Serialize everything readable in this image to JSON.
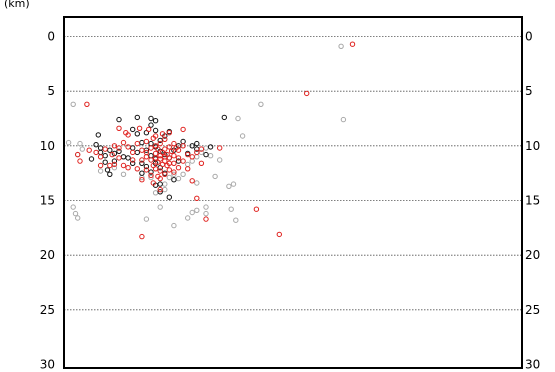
{
  "chart_data": {
    "type": "scatter",
    "title": "",
    "xlabel": "",
    "ylabel": "(km)",
    "ylim": [
      0,
      30
    ],
    "y_inverted": true,
    "xlim": [
      0,
      100
    ],
    "yticks": [
      0,
      5,
      10,
      15,
      20,
      25,
      30
    ],
    "ytick_labels": [
      "0",
      "5",
      "10",
      "15",
      "20",
      "25",
      "30"
    ],
    "ticks_both_sides": true,
    "grid": "horizontal dotted",
    "marker": "open circle",
    "colors": {
      "black": "#111111",
      "gray": "#a8a8a8",
      "red": "#e0221f",
      "frame": "#000000",
      "grid": "#555555"
    },
    "series": [
      {
        "color_key": "gray",
        "points": [
          [
            1,
            9.7
          ],
          [
            2,
            6.2
          ],
          [
            2,
            15.6
          ],
          [
            2.5,
            16.2
          ],
          [
            3,
            16.6
          ],
          [
            3.5,
            9.8
          ],
          [
            3,
            10.8
          ],
          [
            4,
            10.3
          ],
          [
            8,
            12.3
          ],
          [
            11,
            12.0
          ],
          [
            13,
            12.6
          ],
          [
            17,
            12.9
          ],
          [
            19,
            12.9
          ],
          [
            20,
            14.3
          ],
          [
            22,
            14.0
          ],
          [
            18,
            16.7
          ],
          [
            21,
            15.6
          ],
          [
            22,
            13.5
          ],
          [
            23,
            12.9
          ],
          [
            24,
            12.6
          ],
          [
            25,
            13.0
          ],
          [
            26,
            12.6
          ],
          [
            27,
            11.7
          ],
          [
            28,
            11.4
          ],
          [
            29,
            11.0
          ],
          [
            29,
            13.4
          ],
          [
            30,
            10.6
          ],
          [
            31,
            10.2
          ],
          [
            33,
            12.8
          ],
          [
            24,
            17.3
          ],
          [
            27,
            16.6
          ],
          [
            28,
            16.1
          ],
          [
            34,
            11.3
          ],
          [
            29,
            15.9
          ],
          [
            31,
            15.6
          ],
          [
            31,
            16.2
          ],
          [
            32,
            10.9
          ],
          [
            36,
            13.7
          ],
          [
            36.5,
            15.8
          ],
          [
            37,
            13.5
          ],
          [
            37.5,
            16.8
          ],
          [
            38,
            7.5
          ],
          [
            39,
            9.1
          ],
          [
            43,
            6.2
          ],
          [
            60.5,
            0.9
          ],
          [
            61,
            7.6
          ]
        ]
      },
      {
        "color_key": "black",
        "points": [
          [
            6,
            11.2
          ],
          [
            7,
            9.9
          ],
          [
            7.5,
            9.0
          ],
          [
            8,
            10.6
          ],
          [
            8,
            10.2
          ],
          [
            9,
            10.9
          ],
          [
            9,
            11.5
          ],
          [
            9.5,
            12.2
          ],
          [
            10,
            10.4
          ],
          [
            10,
            12.6
          ],
          [
            11,
            10.7
          ],
          [
            11,
            11.4
          ],
          [
            12,
            10.5
          ],
          [
            12,
            7.6
          ],
          [
            13,
            11.0
          ],
          [
            14,
            11.1
          ],
          [
            15,
            8.5
          ],
          [
            15,
            10.2
          ],
          [
            15,
            11.6
          ],
          [
            16,
            7.4
          ],
          [
            16,
            8.9
          ],
          [
            16,
            10.6
          ],
          [
            17,
            9.7
          ],
          [
            17,
            11.6
          ],
          [
            17,
            12.5
          ],
          [
            18,
            10.4
          ],
          [
            18,
            11.9
          ],
          [
            18,
            8.8
          ],
          [
            19,
            7.5
          ],
          [
            19,
            8.1
          ],
          [
            19,
            9.8
          ],
          [
            19,
            10.9
          ],
          [
            19,
            12.4
          ],
          [
            20,
            7.7
          ],
          [
            20,
            8.6
          ],
          [
            20,
            10.1
          ],
          [
            20,
            13.6
          ],
          [
            20,
            11.2
          ],
          [
            20,
            11.6
          ],
          [
            21,
            9.5
          ],
          [
            21,
            10.5
          ],
          [
            21,
            12.0
          ],
          [
            21,
            13.5
          ],
          [
            21,
            14.2
          ],
          [
            22,
            9.1
          ],
          [
            22,
            10.8
          ],
          [
            22,
            12.5
          ],
          [
            23,
            8.7
          ],
          [
            23,
            11.1
          ],
          [
            23,
            14.7
          ],
          [
            24,
            10.4
          ],
          [
            24,
            13.1
          ],
          [
            25,
            10.0
          ],
          [
            25,
            11.4
          ],
          [
            26,
            9.6
          ],
          [
            27,
            10.7
          ],
          [
            28,
            10.0
          ],
          [
            29,
            10.3
          ],
          [
            29,
            9.8
          ],
          [
            31,
            10.8
          ],
          [
            32,
            10.1
          ],
          [
            35,
            7.4
          ]
        ]
      },
      {
        "color_key": "red",
        "points": [
          [
            5,
            6.2
          ],
          [
            3,
            10.8
          ],
          [
            3.5,
            11.4
          ],
          [
            5.5,
            10.4
          ],
          [
            7,
            10.6
          ],
          [
            8,
            11.8
          ],
          [
            8,
            11.0
          ],
          [
            9,
            10.3
          ],
          [
            10,
            11.8
          ],
          [
            10.5,
            10.8
          ],
          [
            11,
            10.0
          ],
          [
            11,
            11.7
          ],
          [
            12,
            10.2
          ],
          [
            12,
            11.1
          ],
          [
            12,
            8.4
          ],
          [
            13,
            9.7
          ],
          [
            13,
            11.8
          ],
          [
            13.5,
            8.8
          ],
          [
            14,
            9.0
          ],
          [
            14,
            10.1
          ],
          [
            14,
            12.0
          ],
          [
            15,
            10.6
          ],
          [
            15,
            11.3
          ],
          [
            16,
            9.8
          ],
          [
            16,
            12.1
          ],
          [
            16.5,
            8.4
          ],
          [
            17,
            10.4
          ],
          [
            17,
            11.3
          ],
          [
            17,
            13.1
          ],
          [
            18,
            9.6
          ],
          [
            18,
            10.6
          ],
          [
            18,
            11.0
          ],
          [
            18,
            12.2
          ],
          [
            18.5,
            8.5
          ],
          [
            19,
            10.2
          ],
          [
            19,
            11.3
          ],
          [
            19,
            12.7
          ],
          [
            19.5,
            13.4
          ],
          [
            19.5,
            11.8
          ],
          [
            19.5,
            9.3
          ],
          [
            20,
            10.7
          ],
          [
            20,
            11.1
          ],
          [
            20,
            12.1
          ],
          [
            20,
            10.0
          ],
          [
            20,
            9.1
          ],
          [
            20.5,
            10.3
          ],
          [
            20.5,
            11.5
          ],
          [
            20.5,
            12.8
          ],
          [
            21,
            10.9
          ],
          [
            21,
            11.2
          ],
          [
            21,
            9.8
          ],
          [
            21,
            12.3
          ],
          [
            21,
            13.0
          ],
          [
            21,
            14.0
          ],
          [
            21.5,
            8.9
          ],
          [
            21.5,
            10.6
          ],
          [
            21.5,
            11.7
          ],
          [
            22,
            10.3
          ],
          [
            22,
            11.0
          ],
          [
            22,
            11.4
          ],
          [
            22,
            12.6
          ],
          [
            22,
            9.4
          ],
          [
            22.5,
            10.8
          ],
          [
            22.5,
            11.8
          ],
          [
            23,
            10.1
          ],
          [
            23,
            11.1
          ],
          [
            23,
            11.6
          ],
          [
            23,
            12.2
          ],
          [
            23,
            8.8
          ],
          [
            23.5,
            10.5
          ],
          [
            24,
            9.8
          ],
          [
            24,
            10.9
          ],
          [
            24,
            11.6
          ],
          [
            24,
            12.4
          ],
          [
            24.5,
            10.2
          ],
          [
            25,
            11.1
          ],
          [
            25,
            12.0
          ],
          [
            25,
            10.4
          ],
          [
            26,
            11.4
          ],
          [
            26,
            10.0
          ],
          [
            26,
            8.5
          ],
          [
            27,
            10.8
          ],
          [
            27,
            12.1
          ],
          [
            28,
            11.0
          ],
          [
            28,
            13.2
          ],
          [
            29,
            10.6
          ],
          [
            30,
            11.6
          ],
          [
            30,
            10.3
          ],
          [
            29,
            14.8
          ],
          [
            31,
            16.7
          ],
          [
            34,
            10.2
          ],
          [
            17,
            18.3
          ],
          [
            42,
            15.8
          ],
          [
            47,
            18.1
          ],
          [
            53,
            5.2
          ],
          [
            63,
            0.7
          ]
        ]
      }
    ]
  }
}
